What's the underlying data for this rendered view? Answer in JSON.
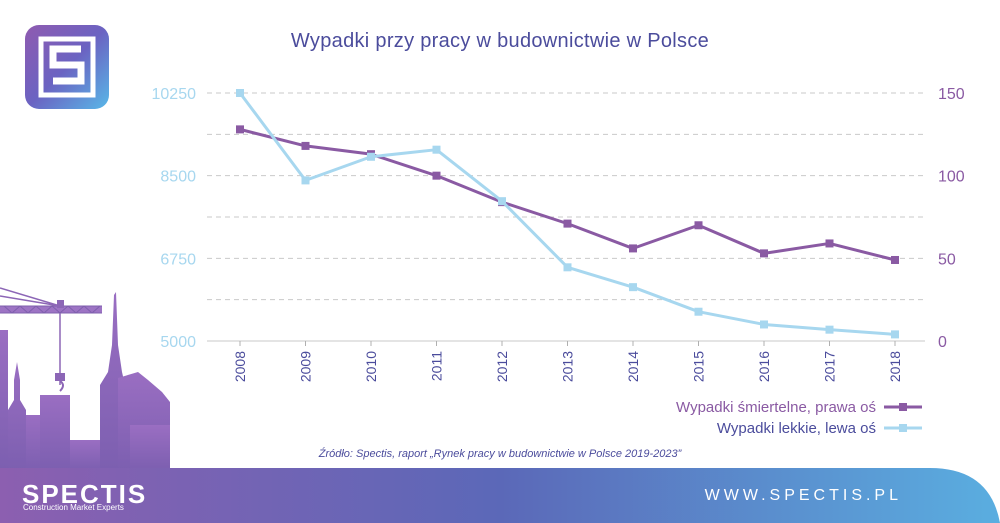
{
  "title": "Wypadki przy pracy w budownictwie w Polsce",
  "source": "Źródło: Spectis, raport „Rynek pracy w budownictwie w Polsce 2019-2023”",
  "brand": {
    "name": "SPECTIS",
    "tagline": "Construction Market Experts",
    "website": "WWW.SPECTIS.PL"
  },
  "colors": {
    "fatal": "#8a5aa3",
    "light": "#a7d7ef",
    "title": "#4b4c9c",
    "grid": "#c9c9c9"
  },
  "legend": [
    {
      "label": "Wypadki śmiertelne, prawa oś",
      "color": "#8a5aa3"
    },
    {
      "label": "Wypadki lekkie, lewa oś",
      "color": "#a7d7ef"
    }
  ],
  "chart_data": {
    "type": "line",
    "categories": [
      "2008",
      "2009",
      "2010",
      "2011",
      "2012",
      "2013",
      "2014",
      "2015",
      "2016",
      "2017",
      "2018"
    ],
    "left_axis": {
      "ticks": [
        "10250",
        "8500",
        "6750",
        "5000"
      ],
      "min": 5000,
      "max": 10250,
      "color": "#a7d7ef"
    },
    "right_axis": {
      "ticks": [
        "150",
        "100",
        "50",
        "0"
      ],
      "min": 0,
      "max": 150,
      "color": "#8a5aa3"
    },
    "series": [
      {
        "name": "Wypadki śmiertelne, prawa oś",
        "axis": "right",
        "color": "#8a5aa3",
        "values": [
          128,
          118,
          113,
          100,
          84,
          71,
          56,
          70,
          53,
          59,
          49
        ]
      },
      {
        "name": "Wypadki lekkie, lewa oś",
        "axis": "left",
        "color": "#a7d7ef",
        "values": [
          10250,
          8400,
          8900,
          9050,
          7960,
          6560,
          6140,
          5620,
          5350,
          5240,
          5140
        ]
      }
    ],
    "grid": true,
    "legend_position": "bottom-right"
  }
}
